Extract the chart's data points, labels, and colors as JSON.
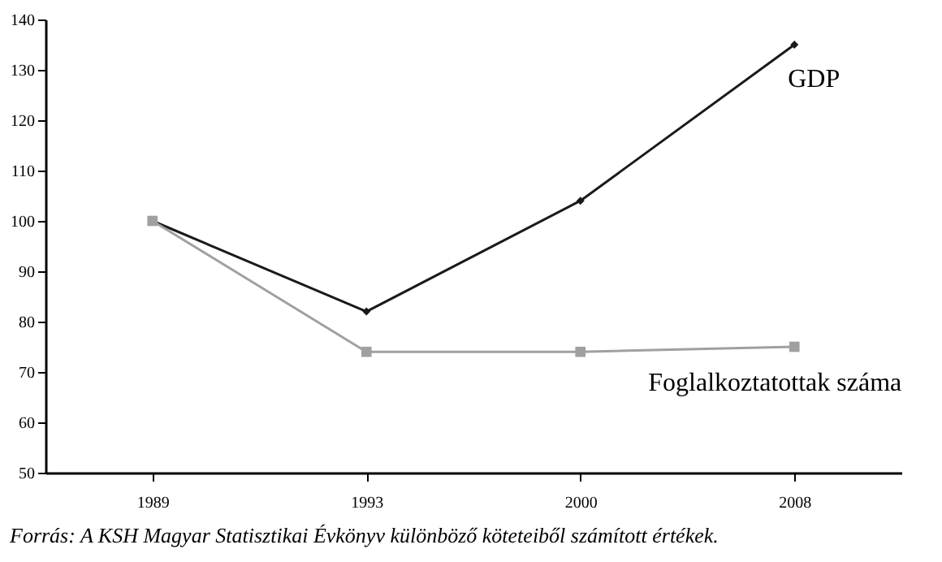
{
  "chart_data": {
    "type": "line",
    "categories": [
      "1989",
      "1993",
      "2000",
      "2008"
    ],
    "series": [
      {
        "name": "GDP",
        "color": "#1a1a1a",
        "marker": "diamond",
        "values": [
          100,
          82,
          104,
          135
        ]
      },
      {
        "name": "Foglalkoztatottak száma",
        "color": "#a0a0a0",
        "marker": "square",
        "values": [
          100,
          74,
          74,
          75
        ]
      }
    ],
    "ylim": [
      50,
      140
    ],
    "yticks": [
      50,
      60,
      70,
      80,
      90,
      100,
      110,
      120,
      130,
      140
    ],
    "grid": false,
    "line_style": "solid",
    "annotations": [
      "Forrás: A KSH Magyar Statisztikai Évkönyv különböző köteteiből számított értékek."
    ]
  }
}
